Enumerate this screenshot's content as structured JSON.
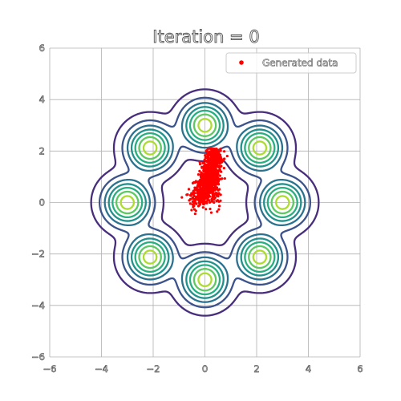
{
  "chart_data": {
    "type": "scatter",
    "title": "Iteration = 0",
    "xlabel": "",
    "ylabel": "",
    "xlim": [
      -6,
      6
    ],
    "ylim": [
      -6,
      6
    ],
    "x_ticks": [
      -6,
      -4,
      -2,
      0,
      2,
      4,
      6
    ],
    "y_ticks": [
      -6,
      -4,
      -2,
      0,
      2,
      4,
      6
    ],
    "x_tick_labels": [
      "−6",
      "−4",
      "−2",
      "0",
      "2",
      "4",
      "6"
    ],
    "y_tick_labels": [
      "−6",
      "−4",
      "−2",
      "0",
      "2",
      "4",
      "6"
    ],
    "grid": true,
    "legend": {
      "placement": "top-right",
      "entries": [
        {
          "label": "Generated data",
          "color": "#ff0000",
          "marker": "dot"
        }
      ]
    },
    "contour_background": {
      "mixture": "ring of 8 gaussians",
      "ring_radius": 3,
      "component_std": 0.5,
      "centers": [
        [
          3,
          0
        ],
        [
          2.12,
          2.12
        ],
        [
          0,
          3
        ],
        [
          -2.12,
          2.12
        ],
        [
          -3,
          0
        ],
        [
          -2.12,
          -2.12
        ],
        [
          0,
          -3
        ],
        [
          2.12,
          -2.12
        ]
      ],
      "colors": [
        "#472d7b",
        "#3b528b",
        "#2c728e",
        "#21918c",
        "#28ae80",
        "#5ec962",
        "#addc30"
      ]
    },
    "series": [
      {
        "name": "Generated data",
        "color": "#ff0000",
        "cluster": {
          "count": 1000,
          "x_range": [
            -0.95,
            1.0
          ],
          "y_range": [
            -0.45,
            2.1
          ],
          "dense_core": [
            0.1,
            0.6
          ]
        }
      }
    ]
  }
}
